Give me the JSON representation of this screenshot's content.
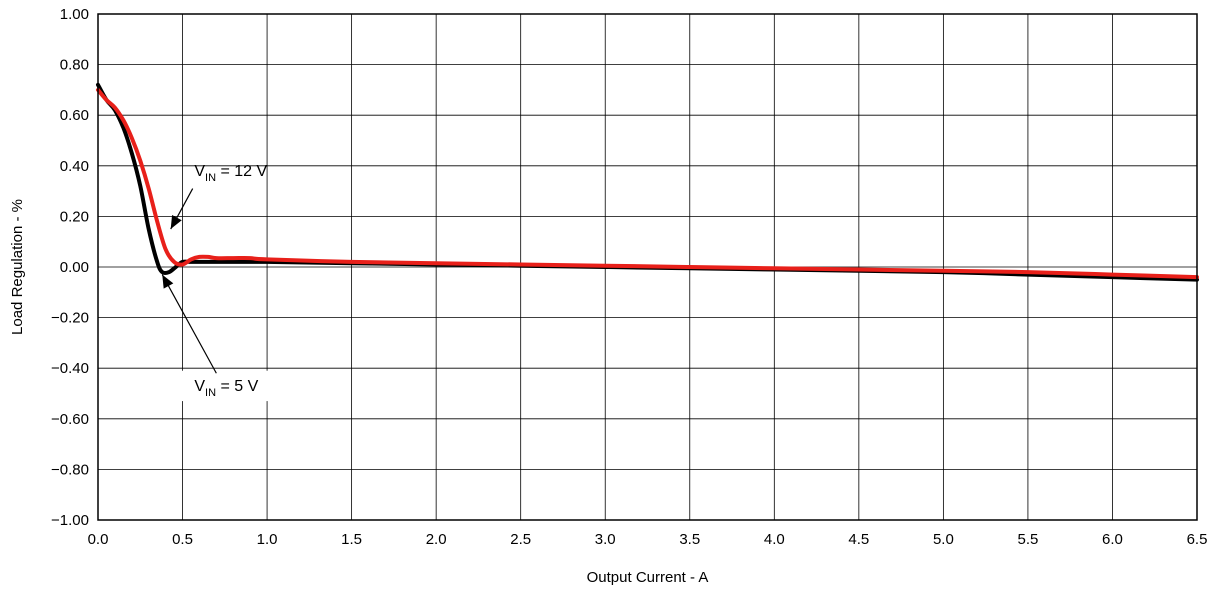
{
  "chart_data": {
    "type": "line",
    "title": "",
    "xlabel": "Output Current - A",
    "ylabel": "Load Regulation  - %",
    "xlim": [
      0,
      6.5
    ],
    "ylim": [
      -1,
      1
    ],
    "x_ticks": [
      0,
      0.5,
      1,
      1.5,
      2,
      2.5,
      3,
      3.5,
      4,
      4.5,
      5,
      5.5,
      6,
      6.5
    ],
    "x_tick_labels": [
      "0.0",
      "0.5",
      "1.0",
      "1.5",
      "2.0",
      "2.5",
      "3.0",
      "3.5",
      "4.0",
      "4.5",
      "5.0",
      "5.5",
      "6.0",
      "6.5"
    ],
    "y_ticks": [
      -1,
      -0.8,
      -0.6,
      -0.4,
      -0.2,
      0,
      0.2,
      0.4,
      0.6,
      0.8,
      1
    ],
    "y_tick_labels": [
      "−1.00",
      "−0.80",
      "−0.60",
      "−0.40",
      "−0.20",
      "0.00",
      "0.20",
      "0.40",
      "0.60",
      "0.80",
      "1.00"
    ],
    "grid": true,
    "series": [
      {
        "color": "#000000",
        "x": [
          0,
          0.05,
          0.1,
          0.15,
          0.2,
          0.25,
          0.3,
          0.35,
          0.38,
          0.42,
          0.46,
          0.5,
          0.55,
          0.6,
          0.7,
          0.8,
          0.9,
          1.0,
          1.5,
          2.0,
          2.5,
          3.0,
          3.5,
          4.0,
          4.5,
          5.0,
          5.5,
          6.0,
          6.5
        ],
        "y": [
          0.72,
          0.66,
          0.62,
          0.55,
          0.45,
          0.32,
          0.15,
          0.02,
          -0.02,
          -0.02,
          0.0,
          0.02,
          0.02,
          0.02,
          0.02,
          0.02,
          0.02,
          0.02,
          0.015,
          0.01,
          0.005,
          0.0,
          -0.005,
          -0.01,
          -0.015,
          -0.02,
          -0.03,
          -0.04,
          -0.05
        ]
      },
      {
        "color": "#e8201a",
        "x": [
          0,
          0.05,
          0.1,
          0.15,
          0.2,
          0.25,
          0.3,
          0.35,
          0.4,
          0.45,
          0.5,
          0.55,
          0.6,
          0.65,
          0.7,
          0.8,
          0.9,
          1.0,
          1.5,
          2.0,
          2.5,
          3.0,
          3.5,
          4.0,
          4.5,
          5.0,
          5.5,
          6.0,
          6.5
        ],
        "y": [
          0.7,
          0.66,
          0.63,
          0.58,
          0.51,
          0.42,
          0.31,
          0.18,
          0.07,
          0.02,
          0.01,
          0.03,
          0.04,
          0.04,
          0.035,
          0.035,
          0.035,
          0.03,
          0.02,
          0.015,
          0.01,
          0.005,
          0.0,
          -0.005,
          -0.01,
          -0.015,
          -0.02,
          -0.03,
          -0.04
        ]
      }
    ],
    "annotations": [
      {
        "base": "V",
        "sub": "IN",
        "rest": " = 12 V",
        "text_at": [
          0.57,
          0.38
        ],
        "box": [
          0.49,
          0.73,
          0.32,
          0.44
        ],
        "arrow_from": [
          0.56,
          0.31
        ],
        "arrow_to": [
          0.43,
          0.15
        ]
      },
      {
        "base": "V",
        "sub": "IN",
        "rest": " = 5 V",
        "text_at": [
          0.57,
          -0.47
        ],
        "box": [
          0.49,
          1.2,
          -0.41,
          -0.53
        ],
        "arrow_from": [
          0.7,
          -0.42
        ],
        "arrow_to": [
          0.38,
          -0.03
        ]
      }
    ]
  }
}
